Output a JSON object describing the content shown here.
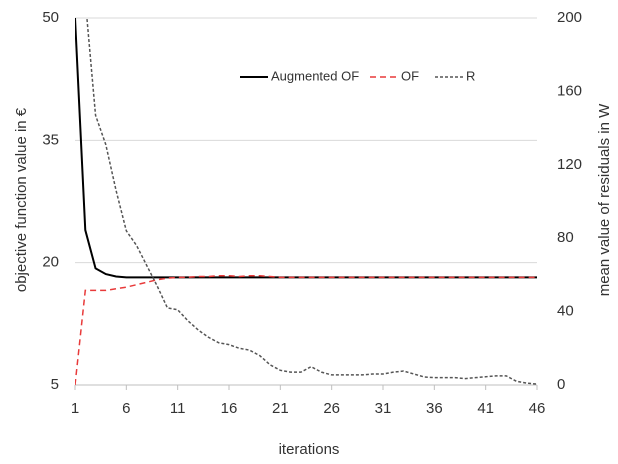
{
  "chart_data": {
    "type": "line",
    "xlabel": "iterations",
    "ylabel": "objective function value in €",
    "y2label": "mean value of residuals in W",
    "x": [
      1,
      2,
      3,
      4,
      5,
      6,
      7,
      8,
      9,
      10,
      11,
      12,
      13,
      14,
      15,
      16,
      17,
      18,
      19,
      20,
      21,
      22,
      23,
      24,
      25,
      26,
      27,
      28,
      29,
      30,
      31,
      32,
      33,
      34,
      35,
      36,
      37,
      38,
      39,
      40,
      41,
      42,
      43,
      44,
      45,
      46
    ],
    "xlim": [
      1,
      46
    ],
    "xticks": [
      1,
      6,
      11,
      16,
      21,
      26,
      31,
      36,
      41,
      46
    ],
    "ylim": [
      5,
      50
    ],
    "yticks": [
      5,
      20,
      35,
      50
    ],
    "y2lim": [
      0,
      200
    ],
    "y2ticks": [
      0,
      40,
      80,
      120,
      160,
      200
    ],
    "grid": true,
    "legend": "top-right",
    "series": [
      {
        "name": "Augmented OF",
        "color": "#000000",
        "dash": false,
        "values": [
          50,
          24,
          19.3,
          18.6,
          18.3,
          18.2,
          18.2,
          18.2,
          18.2,
          18.2,
          18.2,
          18.2,
          18.2,
          18.2,
          18.2,
          18.2,
          18.2,
          18.2,
          18.2,
          18.2,
          18.2,
          18.2,
          18.2,
          18.2,
          18.2,
          18.2,
          18.2,
          18.2,
          18.2,
          18.2,
          18.2,
          18.2,
          18.2,
          18.2,
          18.2,
          18.2,
          18.2,
          18.2,
          18.2,
          18.2,
          18.2,
          18.2,
          18.2,
          18.2,
          18.2,
          18.2
        ]
      },
      {
        "name": "OF",
        "color": "#e83a3a",
        "dash": true,
        "values": [
          5,
          16.6,
          16.6,
          16.6,
          16.8,
          17.0,
          17.3,
          17.6,
          17.9,
          18.1,
          18.2,
          18.2,
          18.3,
          18.3,
          18.4,
          18.4,
          18.3,
          18.4,
          18.4,
          18.3,
          18.2,
          18.2,
          18.2,
          18.2,
          18.2,
          18.2,
          18.2,
          18.2,
          18.2,
          18.2,
          18.2,
          18.2,
          18.2,
          18.2,
          18.2,
          18.2,
          18.2,
          18.2,
          18.2,
          18.2,
          18.2,
          18.2,
          18.2,
          18.2,
          18.2,
          18.2
        ]
      },
      {
        "name": "R",
        "color": "#555555",
        "dash": true,
        "axis": "y2",
        "values": [
          300,
          210,
          147,
          131,
          106,
          84,
          76,
          65,
          54,
          42,
          41,
          35,
          30,
          26,
          23,
          22,
          20,
          19,
          16,
          11,
          8,
          7,
          7,
          10,
          7,
          5.5,
          5.5,
          5.5,
          5.5,
          6,
          6,
          7,
          7.6,
          6,
          4.4,
          4,
          4,
          4,
          3.5,
          4,
          4.5,
          5,
          5,
          2,
          1,
          0.5
        ]
      }
    ]
  }
}
